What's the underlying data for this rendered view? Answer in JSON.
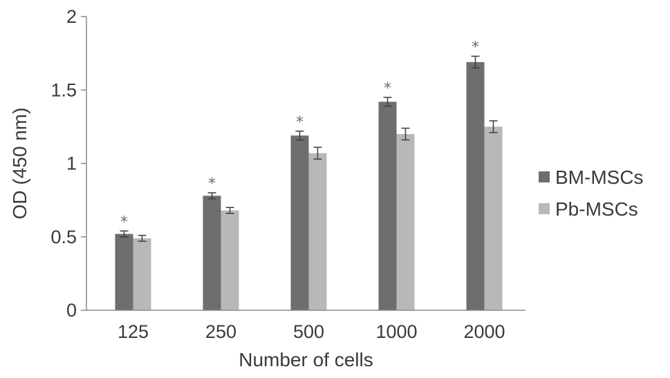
{
  "chart_data": {
    "type": "bar",
    "categories": [
      "125",
      "250",
      "500",
      "1000",
      "2000"
    ],
    "xlabel": "Number of cells",
    "ylabel": "OD (450 nm)",
    "ylim": [
      0,
      2
    ],
    "yticks": [
      "0",
      "0.5",
      "1",
      "1.5",
      "2"
    ],
    "legend_position": "right",
    "grid": false,
    "series": [
      {
        "name": "BM-MSCs",
        "color": "#6e6e6e",
        "values": [
          0.52,
          0.78,
          1.19,
          1.42,
          1.69
        ],
        "errors": [
          0.02,
          0.02,
          0.03,
          0.03,
          0.04
        ],
        "annotations": [
          "*",
          "*",
          "*",
          "*",
          "*"
        ]
      },
      {
        "name": "Pb-MSCs",
        "color": "#b8b8b8",
        "values": [
          0.49,
          0.68,
          1.07,
          1.2,
          1.25
        ],
        "errors": [
          0.02,
          0.02,
          0.04,
          0.04,
          0.04
        ],
        "annotations": []
      }
    ]
  }
}
